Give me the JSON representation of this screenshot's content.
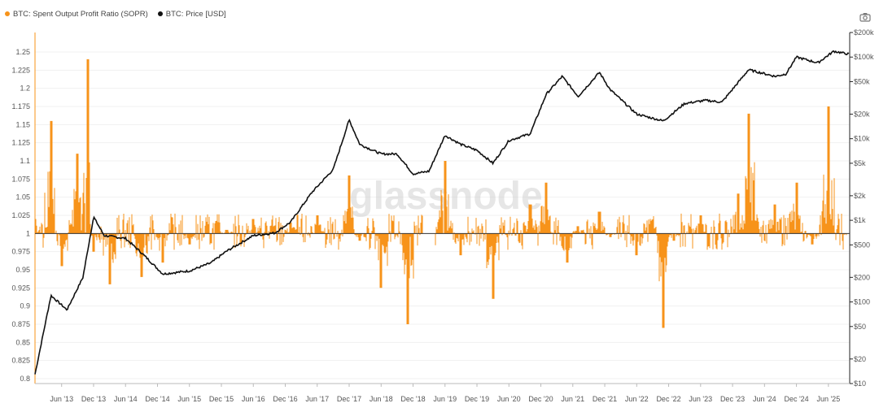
{
  "legend": {
    "sopr_label": "BTC: Spent Output Profit Ratio (SOPR)",
    "price_label": "BTC: Price [USD]"
  },
  "watermark": "glassnode",
  "colors": {
    "sopr": "#f7931a",
    "price": "#111111",
    "grid": "#efefef",
    "axis": "#888888"
  },
  "toolbar": {
    "camera_icon": "camera-icon"
  },
  "chart_data": {
    "type": "line",
    "x_ticks": [
      "Jun '13",
      "Dec '13",
      "Jun '14",
      "Dec '14",
      "Jun '15",
      "Dec '15",
      "Jun '16",
      "Dec '16",
      "Jun '17",
      "Dec '17",
      "Jun '18",
      "Dec '18",
      "Jun '19",
      "Dec '19",
      "Jun '20",
      "Dec '20",
      "Jun '21",
      "Dec '21",
      "Jun '22",
      "Dec '22",
      "Jun '23",
      "Dec '23",
      "Jun '24",
      "Dec '24",
      "Jun '25"
    ],
    "x_range": [
      "2013-01",
      "2025-10"
    ],
    "y_left": {
      "label": "SOPR",
      "ylim": [
        0.8,
        1.25
      ],
      "ticks": [
        "0.8",
        "0.825",
        "0.85",
        "0.875",
        "0.9",
        "0.925",
        "0.95",
        "0.975",
        "1",
        "1.025",
        "1.05",
        "1.075",
        "1.1",
        "1.125",
        "1.15",
        "1.175",
        "1.2",
        "1.225",
        "1.25"
      ]
    },
    "y_right": {
      "label": "Price [USD]",
      "scale": "log",
      "ylim": [
        10,
        200000
      ],
      "ticks": [
        "$10",
        "$20",
        "$50",
        "$100",
        "$200",
        "$500",
        "$1k",
        "$2k",
        "$5k",
        "$10k",
        "$20k",
        "$50k",
        "$100k",
        "$200k"
      ]
    },
    "reference_line": 1,
    "series": [
      {
        "name": "BTC: Price [USD]",
        "axis": "right",
        "x": [
          "2013-01",
          "2013-04",
          "2013-07",
          "2013-10",
          "2013-12",
          "2014-02",
          "2014-06",
          "2014-09",
          "2015-01",
          "2015-06",
          "2015-10",
          "2016-01",
          "2016-06",
          "2016-10",
          "2017-01",
          "2017-05",
          "2017-09",
          "2017-12",
          "2018-02",
          "2018-06",
          "2018-09",
          "2018-12",
          "2019-03",
          "2019-06",
          "2019-09",
          "2019-12",
          "2020-03",
          "2020-06",
          "2020-10",
          "2021-01",
          "2021-04",
          "2021-07",
          "2021-11",
          "2022-01",
          "2022-06",
          "2022-11",
          "2023-03",
          "2023-07",
          "2023-10",
          "2024-03",
          "2024-08",
          "2024-10",
          "2024-12",
          "2025-04",
          "2025-07",
          "2025-10"
        ],
        "values": [
          13,
          120,
          80,
          200,
          1100,
          650,
          600,
          400,
          220,
          240,
          300,
          420,
          650,
          700,
          950,
          2200,
          4200,
          17000,
          8500,
          6500,
          6500,
          3700,
          4000,
          11000,
          8500,
          7200,
          5000,
          9500,
          11500,
          35000,
          58000,
          33000,
          65000,
          40000,
          20000,
          16500,
          27000,
          29500,
          28000,
          70000,
          58000,
          62000,
          100000,
          85000,
          118000,
          108000
        ]
      },
      {
        "name": "BTC: Spent Output Profit Ratio (SOPR)",
        "axis": "left",
        "x": [
          "2013-01",
          "2013-04",
          "2013-06",
          "2013-09",
          "2013-11",
          "2013-12",
          "2014-03",
          "2014-09",
          "2015-01",
          "2015-06",
          "2016-01",
          "2016-06",
          "2017-01",
          "2017-06",
          "2017-12",
          "2018-02",
          "2018-06",
          "2018-11",
          "2019-03",
          "2019-06",
          "2019-09",
          "2020-03",
          "2020-10",
          "2021-01",
          "2021-05",
          "2021-07",
          "2021-11",
          "2022-01",
          "2022-06",
          "2022-11",
          "2023-01",
          "2023-06",
          "2024-01",
          "2024-03",
          "2024-08",
          "2024-12",
          "2025-03",
          "2025-06",
          "2025-10"
        ],
        "values": [
          1.02,
          1.155,
          0.955,
          1.11,
          1.24,
          0.975,
          0.93,
          0.94,
          0.96,
          0.985,
          1.005,
          1.02,
          1.015,
          1.025,
          1.08,
          0.99,
          0.925,
          0.875,
          1.0,
          1.1,
          0.97,
          0.91,
          1.04,
          1.07,
          0.96,
          1.01,
          1.03,
          0.995,
          0.97,
          0.87,
          0.99,
          1.025,
          1.055,
          1.165,
          1.04,
          1.07,
          0.985,
          1.175,
          0.995
        ]
      }
    ]
  }
}
